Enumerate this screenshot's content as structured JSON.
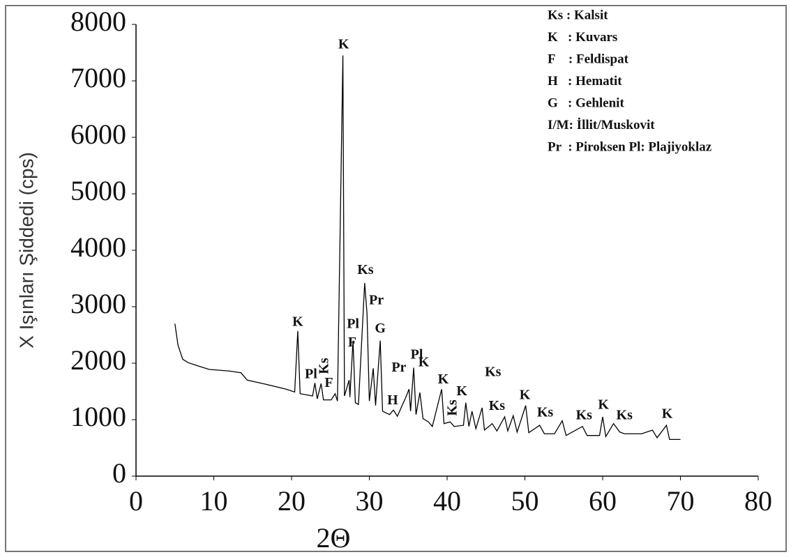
{
  "chart_data": {
    "type": "line",
    "y_label": "X Işınları Şiddedi (cps)",
    "x_label": "2Θ",
    "xlim": [
      0,
      80
    ],
    "xticks": [
      0,
      10,
      20,
      30,
      40,
      50,
      60,
      70,
      80
    ],
    "ylim": [
      0,
      8000
    ],
    "yticks": [
      0,
      1000,
      2000,
      3000,
      4000,
      5000,
      6000,
      7000,
      8000
    ],
    "grid": false,
    "series": [
      {
        "color": "#000000",
        "x": [
          5,
          5.4,
          6,
          6.7,
          8,
          9.4,
          12.1,
          13.5,
          14.3,
          16.6,
          19.3,
          20.4,
          20.8,
          21.1,
          22.7,
          23,
          23.3,
          23.8,
          24.1,
          25.1,
          25.6,
          25.9,
          26.6,
          26.8,
          27.4,
          27.5,
          27.9,
          28.2,
          28.6,
          29.4,
          29.7,
          30,
          30.5,
          30.8,
          31.4,
          31.7,
          32.6,
          33.1,
          33.6,
          34.7,
          35.1,
          35.3,
          35.7,
          36,
          36.5,
          36.9,
          37.6,
          38.1,
          39.3,
          39.6,
          40.4,
          40.9,
          42.1,
          42.4,
          42.8,
          43.2,
          43.7,
          44.5,
          44.8,
          45.8,
          46.4,
          47.4,
          47.8,
          48.5,
          49,
          50.1,
          50.5,
          51.9,
          52.5,
          53.8,
          54.8,
          55.3,
          57.4,
          58,
          59.6,
          60,
          60.4,
          61.4,
          62.2,
          62.8,
          65,
          66.4,
          67,
          68.2,
          68.6,
          70
        ],
        "values": [
          2700,
          2320,
          2070,
          2010,
          1950,
          1890,
          1860,
          1830,
          1700,
          1630,
          1540,
          1490,
          2570,
          1460,
          1420,
          1650,
          1370,
          1640,
          1350,
          1350,
          1460,
          1330,
          7450,
          1420,
          1700,
          1400,
          2400,
          1300,
          1270,
          3420,
          2880,
          1330,
          1910,
          1250,
          2400,
          1150,
          1090,
          1170,
          1060,
          1400,
          1540,
          1150,
          1920,
          1090,
          1480,
          1020,
          960,
          880,
          1540,
          930,
          960,
          880,
          900,
          1300,
          880,
          1150,
          840,
          1210,
          815,
          930,
          800,
          1050,
          800,
          1070,
          780,
          1250,
          770,
          900,
          750,
          750,
          980,
          720,
          880,
          720,
          720,
          1050,
          700,
          930,
          780,
          750,
          750,
          815,
          680,
          900,
          650,
          650
        ]
      }
    ],
    "annotations": [
      {
        "text": "K",
        "x": 26.7,
        "y": 7630
      },
      {
        "text": "K",
        "x": 20.8,
        "y": 2720
      },
      {
        "text": "Pl",
        "x": 22.5,
        "y": 1790
      },
      {
        "text": "Ks",
        "x": 24.3,
        "y": 1950,
        "rotated": true
      },
      {
        "text": "F",
        "x": 24.8,
        "y": 1640
      },
      {
        "text": "Pl",
        "x": 27.9,
        "y": 2680
      },
      {
        "text": "F",
        "x": 27.8,
        "y": 2350
      },
      {
        "text": "Ks",
        "x": 29.5,
        "y": 3640
      },
      {
        "text": "Pr",
        "x": 30.9,
        "y": 3100
      },
      {
        "text": "G",
        "x": 31.4,
        "y": 2600
      },
      {
        "text": "Pr",
        "x": 33.8,
        "y": 1910
      },
      {
        "text": "Pl",
        "x": 36.1,
        "y": 2140
      },
      {
        "text": "H",
        "x": 33,
        "y": 1330
      },
      {
        "text": "K",
        "x": 37,
        "y": 2000
      },
      {
        "text": "K",
        "x": 39.5,
        "y": 1700
      },
      {
        "text": "Ks",
        "x": 40.8,
        "y": 1210,
        "rotated": true
      },
      {
        "text": "K",
        "x": 41.9,
        "y": 1490
      },
      {
        "text": "Ks",
        "x": 45.9,
        "y": 1830
      },
      {
        "text": "Ks",
        "x": 46.4,
        "y": 1230
      },
      {
        "text": "K",
        "x": 50,
        "y": 1420
      },
      {
        "text": "Ks",
        "x": 52.6,
        "y": 1110
      },
      {
        "text": "Ks",
        "x": 57.6,
        "y": 1060
      },
      {
        "text": "K",
        "x": 60.1,
        "y": 1250
      },
      {
        "text": "Ks",
        "x": 62.8,
        "y": 1060
      },
      {
        "text": "K",
        "x": 68.3,
        "y": 1090
      }
    ],
    "key": [
      "Ks : Kalsit",
      "K   : Kuvars",
      "F    : Feldispat",
      "H   : Hematit",
      "G   : Gehlenit",
      "I/M: İllit/Muskovit",
      "Pr  : Piroksen Pl: Plajiyoklaz"
    ],
    "key_position": "upper right"
  }
}
